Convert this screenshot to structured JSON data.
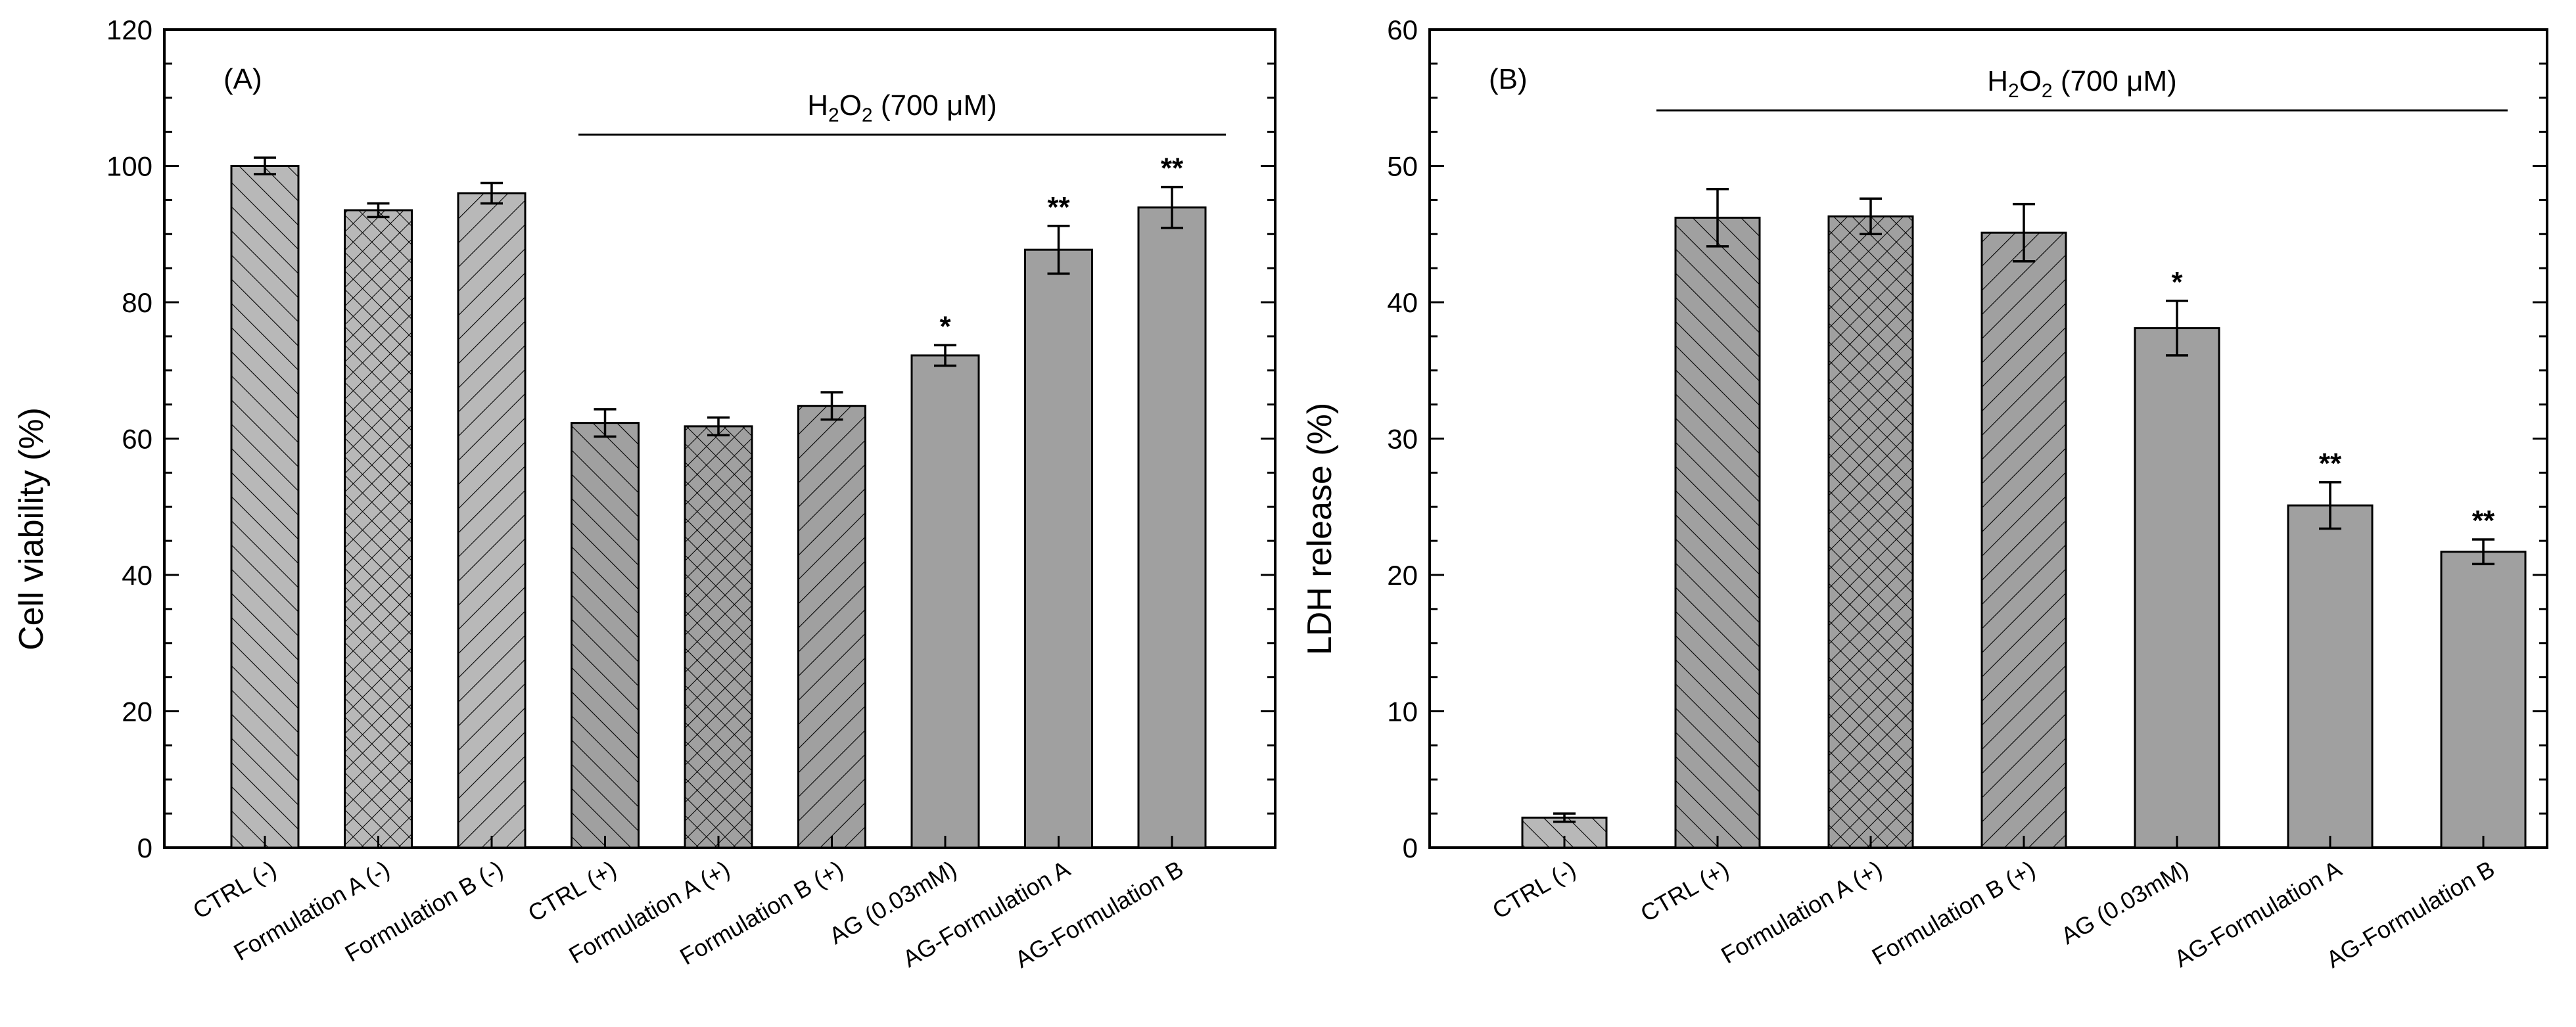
{
  "colors": {
    "light_bar": "#b8b8b8",
    "dark_bar": "#a0a0a0",
    "hatch": "#000000",
    "axis": "#000000"
  },
  "chart_data": [
    {
      "type": "bar",
      "panel_label": "(A)",
      "ylabel": "Cell viability (%)",
      "xlabel": "",
      "ylim": [
        0,
        120
      ],
      "yticks": [
        "0",
        "20",
        "40",
        "60",
        "80",
        "100",
        "120"
      ],
      "grid": false,
      "categories": [
        "CTRL (-)",
        "Formulation A (-)",
        "Formulation B (-)",
        "CTRL (+)",
        "Formulation A (+)",
        "Formulation B (+)",
        "AG (0.03mM)",
        "AG-Formulation A",
        "AG-Formulation B"
      ],
      "values": [
        100,
        93.5,
        96,
        62.3,
        61.8,
        64.8,
        72.2,
        87.7,
        93.9
      ],
      "errors": [
        1.2,
        1.0,
        1.5,
        2.0,
        1.3,
        2.0,
        1.5,
        3.5,
        3.0
      ],
      "patterns": [
        "diag",
        "cross",
        "back",
        "diag",
        "cross",
        "back",
        "none",
        "none",
        "none"
      ],
      "shades": [
        "light",
        "light",
        "light",
        "dark",
        "dark",
        "dark",
        "dark",
        "dark",
        "dark"
      ],
      "significance": [
        "",
        "",
        "",
        "",
        "",
        "",
        "*",
        "**",
        "**"
      ],
      "bracket": {
        "label": "H",
        "sub": "2",
        "mid": "O",
        "sub2": "2",
        "suffix": " (700 μM)",
        "from_index": 3,
        "to_index": 8
      }
    },
    {
      "type": "bar",
      "panel_label": "(B)",
      "ylabel": "LDH release (%)",
      "xlabel": "",
      "ylim": [
        0,
        60
      ],
      "yticks": [
        "0",
        "10",
        "20",
        "30",
        "40",
        "50",
        "60"
      ],
      "grid": false,
      "categories": [
        "CTRL (-)",
        "CTRL (+)",
        "Formulation A (+)",
        "Formulation B (+)",
        "AG (0.03mM)",
        "AG-Formulation A",
        "AG-Formulation B"
      ],
      "values": [
        2.2,
        46.2,
        46.3,
        45.1,
        38.1,
        25.1,
        21.7
      ],
      "errors": [
        0.3,
        2.1,
        1.3,
        2.1,
        2.0,
        1.7,
        0.9
      ],
      "patterns": [
        "diag",
        "diag",
        "cross",
        "back",
        "none",
        "none",
        "none"
      ],
      "shades": [
        "light",
        "dark",
        "dark",
        "dark",
        "dark",
        "dark",
        "dark"
      ],
      "significance": [
        "",
        "",
        "",
        "",
        "*",
        "**",
        "**"
      ],
      "bracket": {
        "label": "H",
        "sub": "2",
        "mid": "O",
        "sub2": "2",
        "suffix": " (700 μM)",
        "from_index": 1,
        "to_index": 6
      }
    }
  ]
}
